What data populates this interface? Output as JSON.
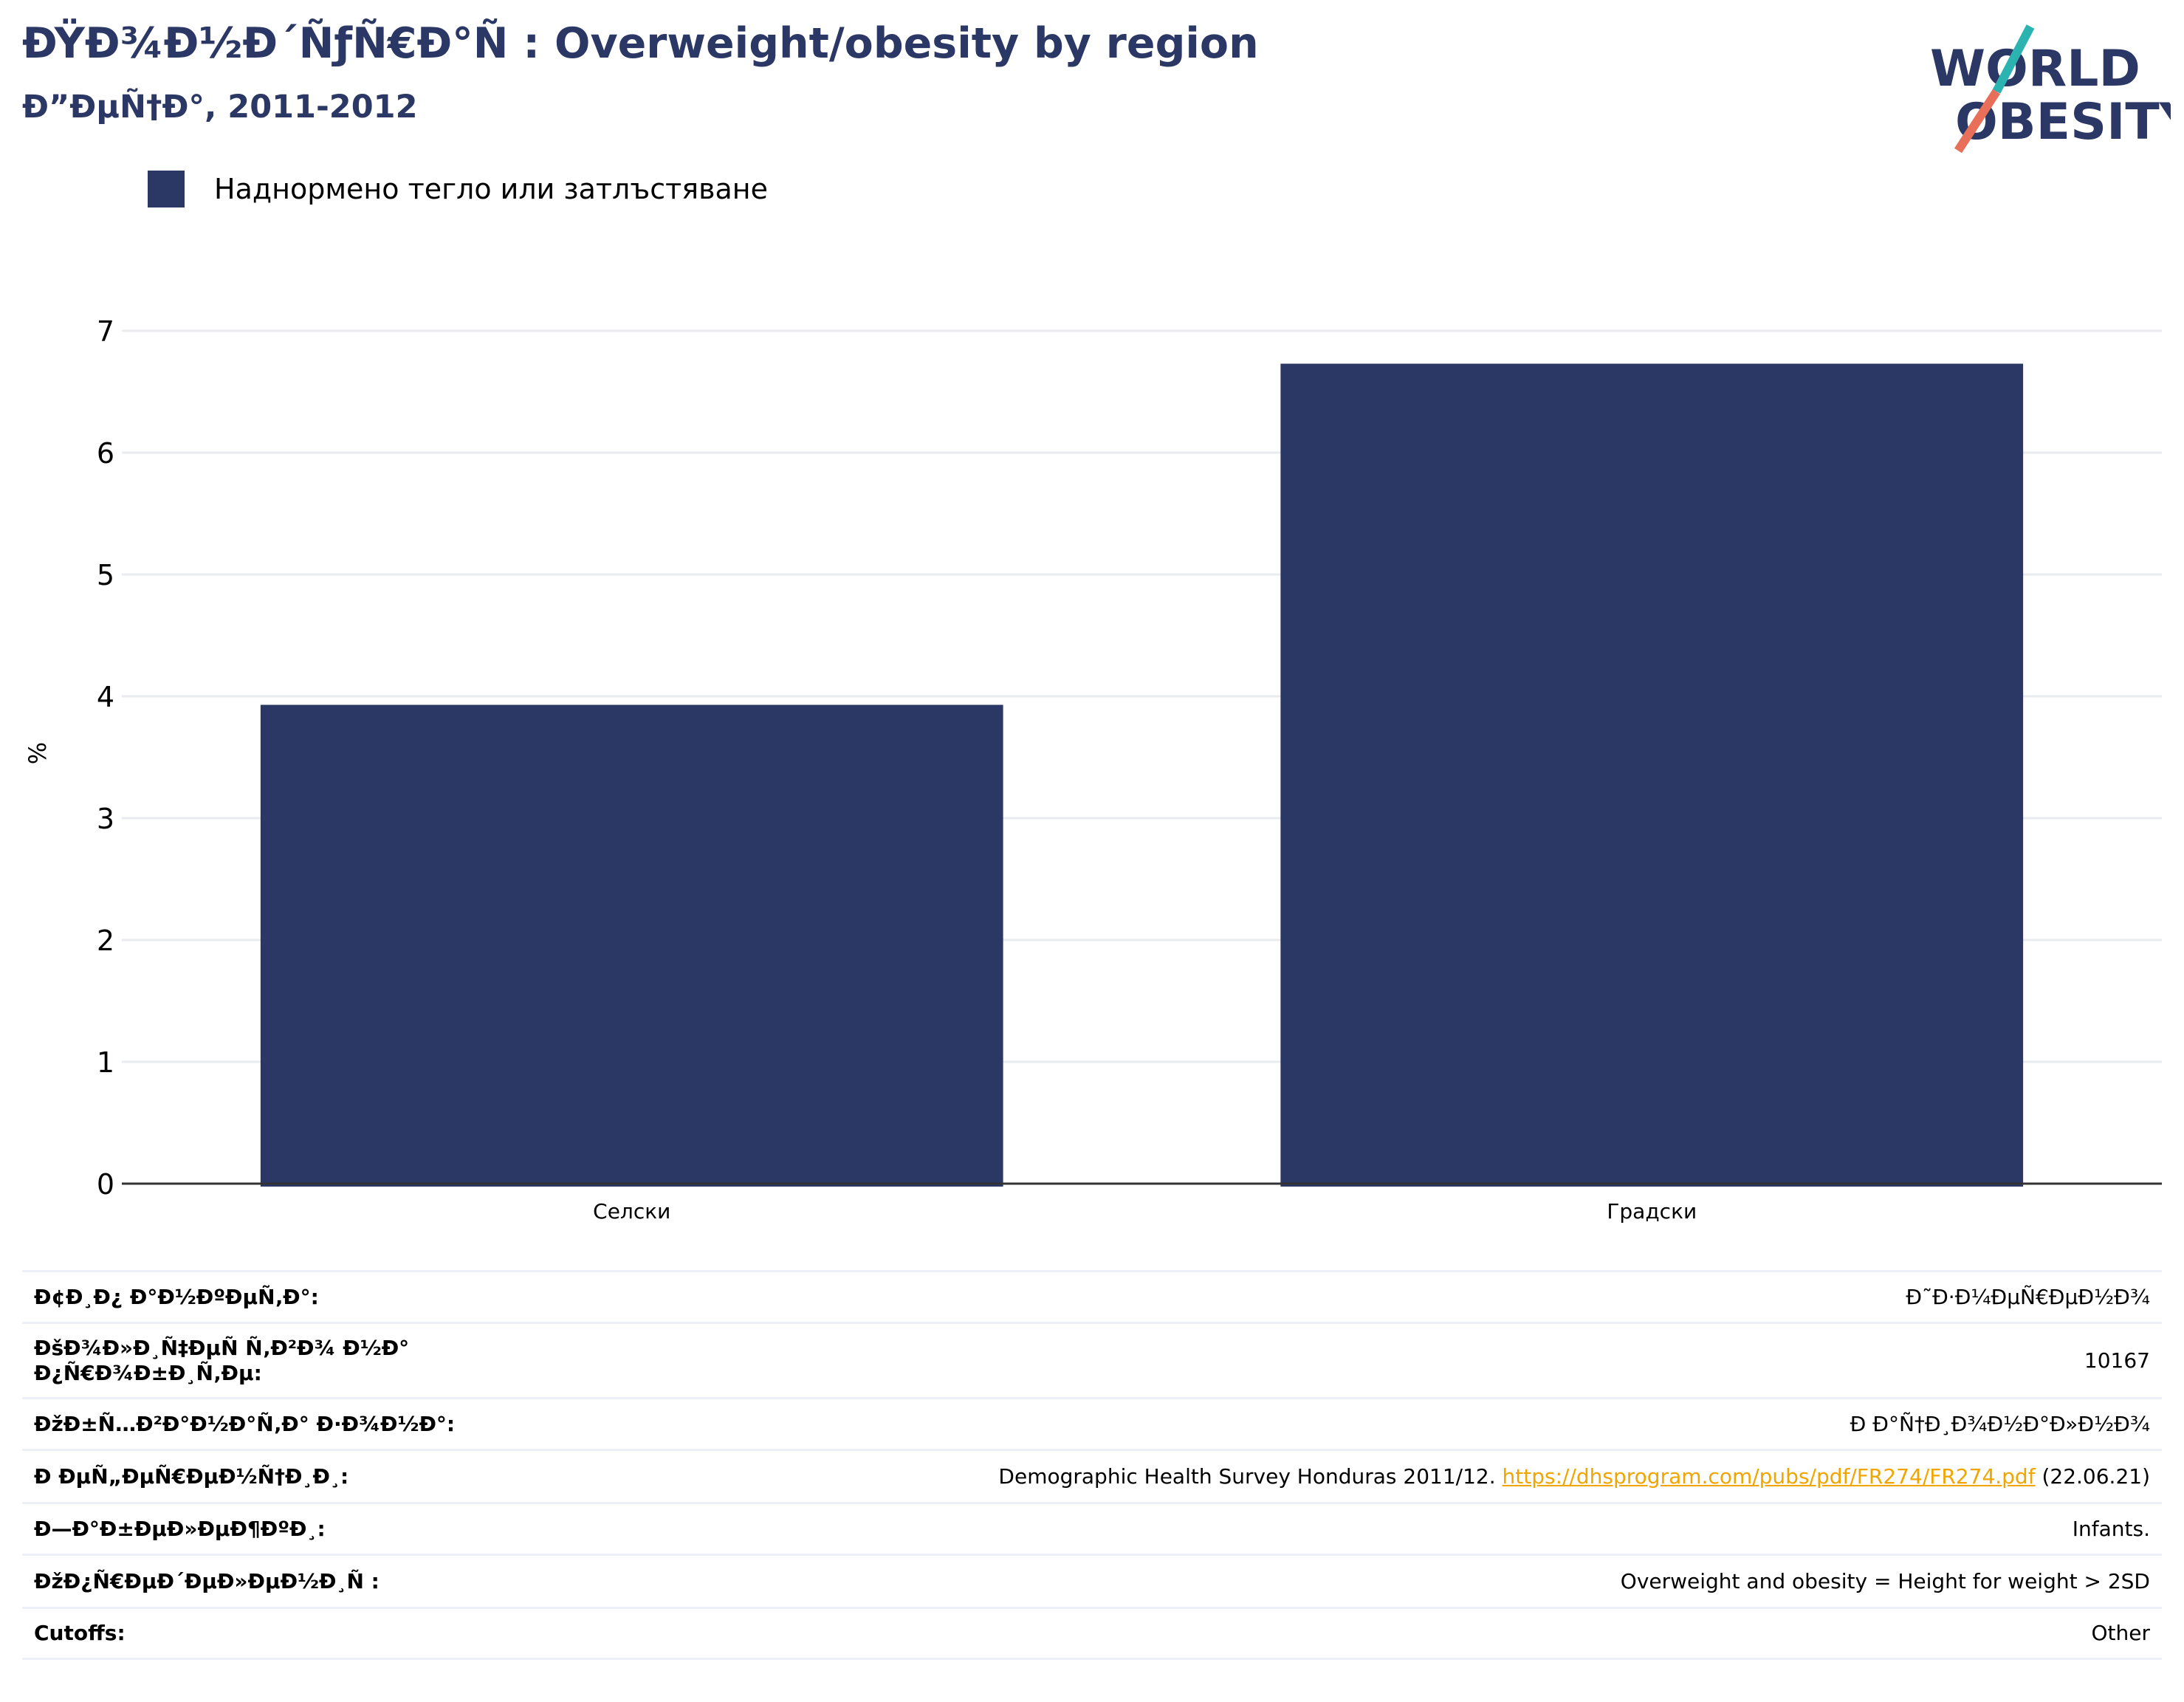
{
  "header": {
    "title": "ÐŸÐ¾Ð½Ð´ÑƒÑ€Ð°Ñ : Overweight/obesity by region",
    "subtitle": "Ð”ÐµÑ†Ð°, 2011-2012"
  },
  "logo": {
    "line1": "WORLD",
    "line2": "OBESITY",
    "colors": {
      "text": "#2b3764",
      "slash_top": "#2bb3b1",
      "slash_bottom": "#e8705a"
    }
  },
  "colors": {
    "bar": "#2b3764",
    "grid": "#e9ebef",
    "axis": "#333333",
    "link": "#f0a500",
    "divider": "#edf0f6"
  },
  "chart_data": {
    "type": "bar",
    "categories": [
      "Селски",
      "Градски"
    ],
    "series": [
      {
        "name": "Наднормено тегло или затлъстяване",
        "values": [
          3.93,
          6.73
        ]
      }
    ],
    "ylabel": "%",
    "ylim": [
      0,
      7
    ],
    "yticks": [
      0,
      1,
      2,
      3,
      4,
      5,
      6,
      7
    ],
    "grid": true,
    "legend": "top-left"
  },
  "info": {
    "rows": [
      {
        "label": "Ð¢Ð¸Ð¿ Ð°Ð½ÐºÐµÑ‚Ð°:",
        "value": "Ð˜Ð·Ð¼ÐµÑ€ÐµÐ½Ð¾"
      },
      {
        "label": "ÐšÐ¾Ð»Ð¸Ñ‡ÐµÑ Ñ‚Ð²Ð¾ Ð½Ð° Ð¿Ñ€Ð¾Ð±Ð¸Ñ‚Ðµ:",
        "value": "10167"
      },
      {
        "label": "ÐžÐ±Ñ…Ð²Ð°Ð½Ð°Ñ‚Ð° Ð·Ð¾Ð½Ð°:",
        "value": "Ð Ð°Ñ†Ð¸Ð¾Ð½Ð°Ð»Ð½Ð¾"
      },
      {
        "label": "Ð ÐµÑ„ÐµÑ€ÐµÐ½Ñ†Ð¸Ð¸:",
        "value_prefix": "Demographic Health Survey Honduras 2011/12. ",
        "link": "https://dhsprogram.com/pubs/pdf/FR274/FR274.pdf",
        "value_suffix": " (22.06.21)"
      },
      {
        "label": "Ð—Ð°Ð±ÐµÐ»ÐµÐ¶ÐºÐ¸:",
        "value": "Infants."
      },
      {
        "label": "ÐžÐ¿Ñ€ÐµÐ´ÐµÐ»ÐµÐ½Ð¸Ñ :",
        "value": "Overweight and obesity = Height for weight > 2SD"
      },
      {
        "label": "Cutoffs:",
        "value": "Other"
      }
    ]
  }
}
